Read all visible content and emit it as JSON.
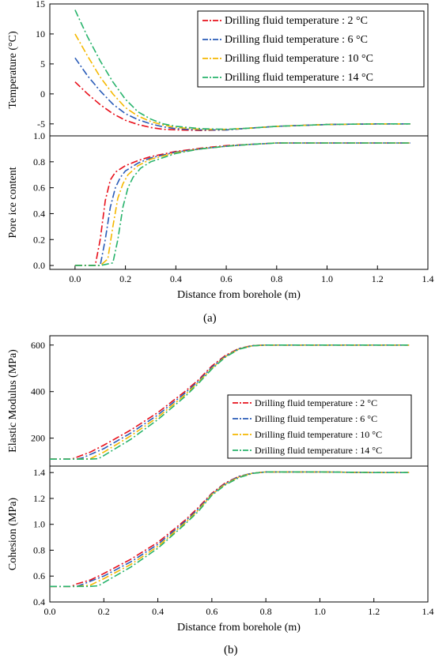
{
  "captions": {
    "a": "(a)",
    "b": "(b)"
  },
  "legend_entries": [
    {
      "label": "Drilling fluid temperature : 2 °C",
      "color": "#e8101b"
    },
    {
      "label": "Drilling fluid temperature : 6 °C",
      "color": "#2a5cb8"
    },
    {
      "label": "Drilling fluid temperature : 10 °C",
      "color": "#f5b800"
    },
    {
      "label": "Drilling fluid temperature : 14 °C",
      "color": "#27b36b"
    }
  ],
  "chart_data": [
    {
      "id": "a-top",
      "type": "line",
      "title": "",
      "xlabel": "",
      "ylabel": "Temperature (°C)",
      "xlim": [
        -0.1,
        1.4
      ],
      "ylim": [
        -7,
        15
      ],
      "yticks": [
        -5,
        0,
        5,
        10,
        15
      ],
      "ytick_labels": [
        "-5",
        "0",
        "5",
        "10",
        "15"
      ],
      "grid": false,
      "legend": "top-right",
      "series": [
        {
          "name": "Drilling fluid temperature : 2 °C",
          "color": "#e8101b",
          "x": [
            0,
            0.05,
            0.1,
            0.15,
            0.2,
            0.25,
            0.3,
            0.35,
            0.4,
            0.5,
            0.6,
            0.7,
            0.8,
            1.0,
            1.2,
            1.33
          ],
          "y": [
            2,
            0.0,
            -1.8,
            -3.3,
            -4.4,
            -5.1,
            -5.6,
            -5.9,
            -6.0,
            -6.1,
            -6.0,
            -5.7,
            -5.4,
            -5.1,
            -5.0,
            -5.0
          ]
        },
        {
          "name": "Drilling fluid temperature : 6 °C",
          "color": "#2a5cb8",
          "x": [
            0,
            0.05,
            0.1,
            0.15,
            0.2,
            0.25,
            0.3,
            0.35,
            0.4,
            0.5,
            0.6,
            0.7,
            0.8,
            1.0,
            1.2,
            1.33
          ],
          "y": [
            6,
            3.0,
            0.5,
            -1.7,
            -3.3,
            -4.3,
            -5.0,
            -5.5,
            -5.8,
            -6.0,
            -6.0,
            -5.7,
            -5.4,
            -5.1,
            -5.0,
            -5.0
          ]
        },
        {
          "name": "Drilling fluid temperature : 10 °C",
          "color": "#f5b800",
          "x": [
            0,
            0.05,
            0.1,
            0.15,
            0.2,
            0.25,
            0.3,
            0.35,
            0.4,
            0.5,
            0.6,
            0.7,
            0.8,
            1.0,
            1.2,
            1.33
          ],
          "y": [
            10,
            6.3,
            2.8,
            0.0,
            -2.3,
            -3.7,
            -4.6,
            -5.2,
            -5.6,
            -5.9,
            -5.9,
            -5.7,
            -5.4,
            -5.1,
            -5.0,
            -5.0
          ]
        },
        {
          "name": "Drilling fluid temperature : 14 °C",
          "color": "#27b36b",
          "x": [
            0,
            0.05,
            0.1,
            0.15,
            0.2,
            0.25,
            0.3,
            0.35,
            0.4,
            0.5,
            0.6,
            0.7,
            0.8,
            1.0,
            1.2,
            1.33
          ],
          "y": [
            14,
            9.5,
            5.5,
            2.0,
            -0.9,
            -3.0,
            -4.2,
            -5.0,
            -5.4,
            -5.8,
            -5.9,
            -5.7,
            -5.4,
            -5.1,
            -5.0,
            -5.0
          ]
        }
      ]
    },
    {
      "id": "a-bottom",
      "type": "line",
      "title": "",
      "xlabel": "Distance from borehole (m)",
      "ylabel": "Pore ice content",
      "xlim": [
        -0.1,
        1.4
      ],
      "ylim": [
        -0.03,
        1.0
      ],
      "xticks": [
        0.0,
        0.2,
        0.4,
        0.6,
        0.8,
        1.0,
        1.2,
        1.4
      ],
      "xtick_labels": [
        "0.0",
        "0.2",
        "0.4",
        "0.6",
        "0.8",
        "1.0",
        "1.2",
        "1.4"
      ],
      "yticks": [
        0.0,
        0.2,
        0.4,
        0.6,
        0.8,
        1.0
      ],
      "ytick_labels": [
        "0.0",
        "0.2",
        "0.4",
        "0.6",
        "0.8",
        "1.0"
      ],
      "grid": false,
      "series": [
        {
          "name": "Drilling fluid temperature : 2 °C",
          "color": "#e8101b",
          "x": [
            0,
            0.05,
            0.08,
            0.1,
            0.12,
            0.14,
            0.16,
            0.2,
            0.25,
            0.3,
            0.4,
            0.5,
            0.6,
            0.7,
            0.8,
            1.0,
            1.2,
            1.33
          ],
          "y": [
            0,
            0,
            0,
            0.2,
            0.5,
            0.66,
            0.72,
            0.77,
            0.81,
            0.84,
            0.88,
            0.905,
            0.925,
            0.935,
            0.945,
            0.945,
            0.945,
            0.945
          ]
        },
        {
          "name": "Drilling fluid temperature : 6 °C",
          "color": "#2a5cb8",
          "x": [
            0,
            0.05,
            0.1,
            0.12,
            0.14,
            0.16,
            0.18,
            0.2,
            0.25,
            0.3,
            0.4,
            0.5,
            0.6,
            0.7,
            0.8,
            1.0,
            1.2,
            1.33
          ],
          "y": [
            0,
            0,
            0,
            0.2,
            0.45,
            0.6,
            0.68,
            0.73,
            0.79,
            0.83,
            0.875,
            0.9,
            0.92,
            0.935,
            0.945,
            0.945,
            0.945,
            0.945
          ]
        },
        {
          "name": "Drilling fluid temperature : 10 °C",
          "color": "#f5b800",
          "x": [
            0,
            0.05,
            0.1,
            0.13,
            0.15,
            0.17,
            0.19,
            0.21,
            0.25,
            0.3,
            0.4,
            0.5,
            0.6,
            0.7,
            0.8,
            1.0,
            1.2,
            1.33
          ],
          "y": [
            0,
            0,
            0,
            0.05,
            0.3,
            0.52,
            0.63,
            0.7,
            0.77,
            0.82,
            0.87,
            0.9,
            0.92,
            0.935,
            0.945,
            0.945,
            0.945,
            0.945
          ]
        },
        {
          "name": "Drilling fluid temperature : 14 °C",
          "color": "#27b36b",
          "x": [
            0,
            0.05,
            0.1,
            0.15,
            0.17,
            0.19,
            0.21,
            0.23,
            0.26,
            0.3,
            0.4,
            0.5,
            0.6,
            0.7,
            0.8,
            1.0,
            1.2,
            1.33
          ],
          "y": [
            0,
            0,
            0,
            0.02,
            0.2,
            0.45,
            0.6,
            0.68,
            0.75,
            0.8,
            0.865,
            0.9,
            0.92,
            0.935,
            0.945,
            0.945,
            0.945,
            0.945
          ]
        }
      ]
    },
    {
      "id": "b-top",
      "type": "line",
      "title": "",
      "xlabel": "",
      "ylabel": "Elastic Modulus (MPa)",
      "xlim": [
        0.0,
        1.4
      ],
      "ylim": [
        80,
        640
      ],
      "yticks": [
        200,
        400,
        600
      ],
      "ytick_labels": [
        "200",
        "400",
        "600"
      ],
      "grid": false,
      "legend": "center-right",
      "series": [
        {
          "name": "Drilling fluid temperature : 2 °C",
          "color": "#e8101b",
          "x": [
            0,
            0.05,
            0.08,
            0.1,
            0.15,
            0.2,
            0.3,
            0.4,
            0.5,
            0.55,
            0.6,
            0.65,
            0.7,
            0.75,
            0.8,
            1.0,
            1.2,
            1.33
          ],
          "y": [
            110,
            110,
            110,
            118,
            140,
            170,
            235,
            310,
            400,
            450,
            510,
            555,
            585,
            598,
            600,
            600,
            600,
            600
          ]
        },
        {
          "name": "Drilling fluid temperature : 6 °C",
          "color": "#2a5cb8",
          "x": [
            0,
            0.05,
            0.1,
            0.12,
            0.15,
            0.2,
            0.3,
            0.4,
            0.5,
            0.55,
            0.6,
            0.65,
            0.7,
            0.75,
            0.8,
            1.0,
            1.2,
            1.33
          ],
          "y": [
            110,
            110,
            110,
            115,
            130,
            155,
            222,
            300,
            393,
            445,
            505,
            552,
            584,
            597,
            600,
            600,
            600,
            600
          ]
        },
        {
          "name": "Drilling fluid temperature : 10 °C",
          "color": "#f5b800",
          "x": [
            0,
            0.05,
            0.1,
            0.15,
            0.2,
            0.3,
            0.4,
            0.5,
            0.55,
            0.6,
            0.65,
            0.7,
            0.75,
            0.8,
            1.0,
            1.2,
            1.33
          ],
          "y": [
            110,
            110,
            110,
            112,
            140,
            210,
            290,
            385,
            440,
            500,
            550,
            583,
            597,
            600,
            600,
            600,
            600
          ]
        },
        {
          "name": "Drilling fluid temperature : 14 °C",
          "color": "#27b36b",
          "x": [
            0,
            0.05,
            0.1,
            0.15,
            0.18,
            0.2,
            0.3,
            0.4,
            0.5,
            0.55,
            0.6,
            0.65,
            0.7,
            0.75,
            0.8,
            1.0,
            1.2,
            1.33
          ],
          "y": [
            110,
            110,
            110,
            110,
            112,
            125,
            195,
            280,
            378,
            435,
            497,
            548,
            582,
            597,
            600,
            600,
            600,
            600
          ]
        }
      ]
    },
    {
      "id": "b-bottom",
      "type": "line",
      "title": "",
      "xlabel": "Distance from borehole (m)",
      "ylabel": "Cohesion (MPa)",
      "xlim": [
        0.0,
        1.4
      ],
      "ylim": [
        0.4,
        1.45
      ],
      "xticks": [
        0.0,
        0.2,
        0.4,
        0.6,
        0.8,
        1.0,
        1.2,
        1.4
      ],
      "xtick_labels": [
        "0.0",
        "0.2",
        "0.4",
        "0.6",
        "0.8",
        "1.0",
        "1.2",
        "1.4"
      ],
      "yticks": [
        0.4,
        0.6,
        0.8,
        1.0,
        1.2,
        1.4
      ],
      "ytick_labels": [
        "0.4",
        "0.6",
        "0.8",
        "1.0",
        "1.2",
        "1.4"
      ],
      "grid": false,
      "series": [
        {
          "name": "Drilling fluid temperature : 2 °C",
          "color": "#e8101b",
          "x": [
            0,
            0.05,
            0.08,
            0.1,
            0.15,
            0.2,
            0.3,
            0.4,
            0.5,
            0.55,
            0.6,
            0.65,
            0.7,
            0.75,
            0.8,
            1.0,
            1.2,
            1.33
          ],
          "y": [
            0.52,
            0.52,
            0.52,
            0.54,
            0.57,
            0.62,
            0.73,
            0.86,
            1.03,
            1.13,
            1.24,
            1.32,
            1.37,
            1.395,
            1.405,
            1.405,
            1.4,
            1.4
          ]
        },
        {
          "name": "Drilling fluid temperature : 6 °C",
          "color": "#2a5cb8",
          "x": [
            0,
            0.05,
            0.1,
            0.12,
            0.15,
            0.2,
            0.3,
            0.4,
            0.5,
            0.55,
            0.6,
            0.65,
            0.7,
            0.75,
            0.8,
            1.0,
            1.2,
            1.33
          ],
          "y": [
            0.52,
            0.52,
            0.52,
            0.535,
            0.56,
            0.6,
            0.71,
            0.845,
            1.02,
            1.12,
            1.235,
            1.315,
            1.37,
            1.395,
            1.405,
            1.405,
            1.4,
            1.4
          ]
        },
        {
          "name": "Drilling fluid temperature : 10 °C",
          "color": "#f5b800",
          "x": [
            0,
            0.05,
            0.1,
            0.15,
            0.2,
            0.3,
            0.4,
            0.5,
            0.55,
            0.6,
            0.65,
            0.7,
            0.75,
            0.8,
            1.0,
            1.2,
            1.33
          ],
          "y": [
            0.52,
            0.52,
            0.52,
            0.53,
            0.58,
            0.69,
            0.83,
            1.01,
            1.11,
            1.23,
            1.31,
            1.365,
            1.395,
            1.405,
            1.405,
            1.4,
            1.4
          ]
        },
        {
          "name": "Drilling fluid temperature : 14 °C",
          "color": "#27b36b",
          "x": [
            0,
            0.05,
            0.1,
            0.15,
            0.18,
            0.2,
            0.3,
            0.4,
            0.5,
            0.55,
            0.6,
            0.65,
            0.7,
            0.75,
            0.8,
            1.0,
            1.2,
            1.33
          ],
          "y": [
            0.52,
            0.52,
            0.52,
            0.52,
            0.525,
            0.55,
            0.67,
            0.815,
            1.0,
            1.1,
            1.225,
            1.305,
            1.36,
            1.393,
            1.405,
            1.405,
            1.4,
            1.4
          ]
        }
      ]
    }
  ]
}
